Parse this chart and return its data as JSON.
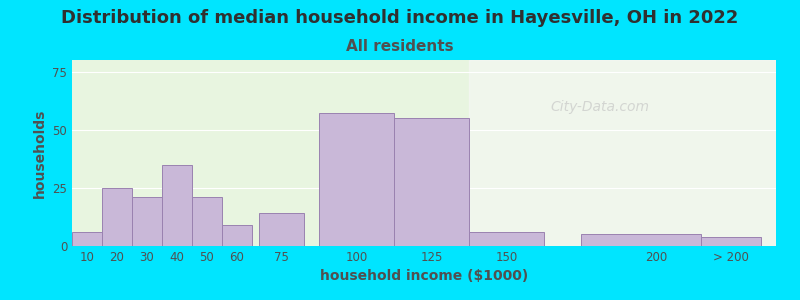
{
  "title": "Distribution of median household income in Hayesville, OH in 2022",
  "subtitle": "All residents",
  "xlabel": "household income ($1000)",
  "ylabel": "households",
  "bar_color": "#c9b8d8",
  "bar_edgecolor": "#9a82b0",
  "background_outer": "#00e5ff",
  "background_plot_left": "#e8f5e0",
  "background_plot_right": "#f5f5f5",
  "title_fontsize": 13,
  "subtitle_fontsize": 11,
  "axis_label_fontsize": 10,
  "categories": [
    "10",
    "20",
    "30",
    "40",
    "50",
    "60",
    "75",
    "100",
    "125",
    "150",
    "200",
    "> 200"
  ],
  "left_edges": [
    5,
    15,
    25,
    35,
    45,
    55,
    67.5,
    87.5,
    112.5,
    137.5,
    175,
    215
  ],
  "widths": [
    10,
    10,
    10,
    10,
    10,
    10,
    15,
    25,
    25,
    25,
    40,
    20
  ],
  "values": [
    6,
    25,
    21,
    35,
    21,
    9,
    14,
    57,
    55,
    6,
    5,
    4
  ],
  "xtick_positions": [
    10,
    20,
    30,
    40,
    50,
    60,
    75,
    100,
    125,
    150,
    200
  ],
  "xtick_labels": [
    "10",
    "20",
    "30",
    "40",
    "50",
    "60",
    "75",
    "100",
    "125",
    "150",
    "200"
  ],
  "ytick_positions": [
    0,
    25,
    50,
    75
  ],
  "ylim": [
    0,
    80
  ],
  "watermark_text": "City-Data.com",
  "watermark_color": "#c0c0c0"
}
